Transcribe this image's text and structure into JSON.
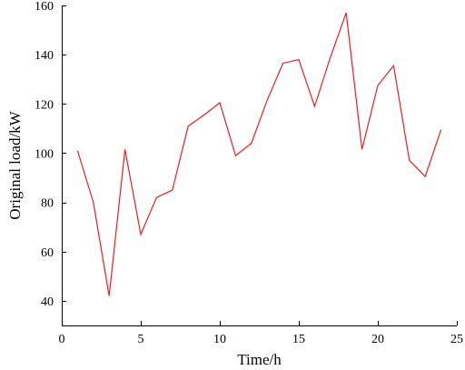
{
  "chart_data": {
    "type": "line",
    "xlabel": "Time/h",
    "ylabel": "Original load/kW",
    "xlim": [
      0,
      25
    ],
    "ylim": [
      30,
      160
    ],
    "xticks": [
      0,
      5,
      10,
      15,
      20,
      25
    ],
    "yticks": [
      40,
      60,
      80,
      100,
      120,
      140,
      160
    ],
    "grid": false,
    "series": [
      {
        "color": "#ee1c25",
        "x": [
          1,
          2,
          3,
          4,
          5,
          6,
          7,
          8,
          9,
          10,
          11,
          12,
          13,
          14,
          15,
          16,
          17,
          18,
          19,
          20,
          21,
          22,
          23,
          24
        ],
        "y": [
          101,
          80,
          42,
          101.5,
          67,
          82,
          85,
          111,
          115.5,
          120.5,
          99,
          104,
          121.5,
          136.5,
          138,
          119,
          139,
          157,
          101.5,
          127.5,
          135.5,
          97,
          90.5,
          109.5
        ]
      }
    ]
  }
}
